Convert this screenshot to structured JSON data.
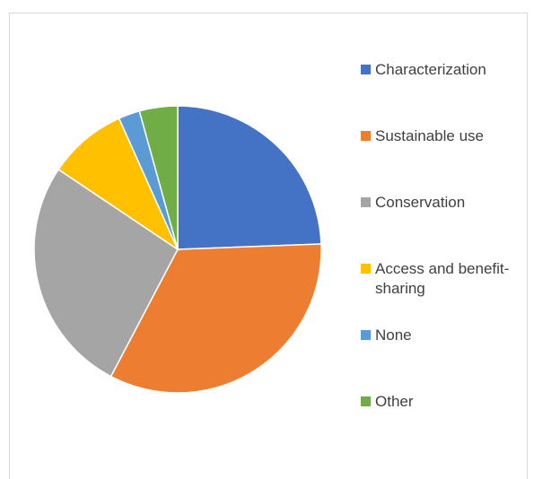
{
  "chart_data": {
    "type": "pie",
    "categories": [
      "Characterization",
      "Sustainable use",
      "Conservation",
      "Access and benefit-sharing",
      "None",
      "Other"
    ],
    "values": [
      24.4,
      33.3,
      26.7,
      8.9,
      2.4,
      4.3
    ],
    "colors": [
      "#4472c4",
      "#ed7d31",
      "#a5a5a5",
      "#ffc000",
      "#5b9bd5",
      "#70ad47"
    ],
    "legend": "right"
  }
}
